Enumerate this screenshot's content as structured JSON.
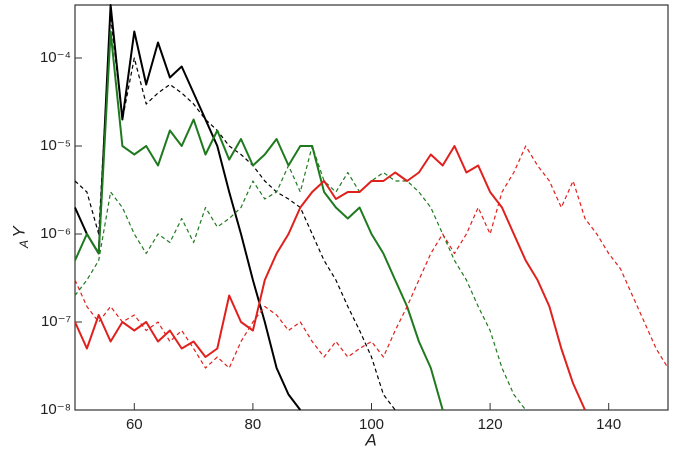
{
  "chart_data": {
    "type": "line",
    "xlabel": "A",
    "ylabel": "Y",
    "ylabel_sub": "A",
    "x": [
      50,
      52,
      54,
      56,
      58,
      60,
      62,
      64,
      66,
      68,
      70,
      72,
      74,
      76,
      78,
      80,
      82,
      84,
      86,
      88,
      90,
      92,
      94,
      96,
      98,
      100,
      102,
      104,
      106,
      108,
      110,
      112,
      114,
      116,
      118,
      120,
      122,
      124,
      126,
      128,
      130,
      132,
      134,
      136,
      138,
      140,
      142,
      144,
      146,
      148,
      150
    ],
    "xlim": [
      50,
      150
    ],
    "xticks": [
      60,
      80,
      100,
      120,
      140
    ],
    "ylim": [
      1e-08,
      0.0004
    ],
    "log_y": true,
    "grid": false,
    "yticks": [
      {
        "value": 1e-08,
        "label": "10⁻⁸"
      },
      {
        "value": 1e-07,
        "label": "10⁻⁷"
      },
      {
        "value": 1e-06,
        "label": "10⁻⁶"
      },
      {
        "value": 1e-05,
        "label": "10⁻⁵"
      },
      {
        "value": 0.0001,
        "label": "10⁻⁴"
      }
    ],
    "series": [
      {
        "color": "#000000",
        "dashed": false,
        "values": [
          2e-06,
          1e-06,
          6e-07,
          0.0004,
          2e-05,
          0.0002,
          5e-05,
          0.00015,
          6e-05,
          8e-05,
          4e-05,
          2e-05,
          1e-05,
          3e-06,
          1e-06,
          3e-07,
          1e-07,
          3e-08,
          1.5e-08,
          1e-08,
          null,
          null,
          null,
          null,
          null,
          null,
          null,
          null,
          null,
          null,
          null,
          null,
          null,
          null,
          null,
          null,
          null,
          null,
          null,
          null,
          null,
          null,
          null,
          null,
          null,
          null,
          null,
          null,
          null,
          null,
          null
        ]
      },
      {
        "color": "#000000",
        "dashed": true,
        "values": [
          4e-06,
          3e-06,
          1e-06,
          0.0003,
          2e-05,
          0.0001,
          3e-05,
          4e-05,
          5e-05,
          4e-05,
          3e-05,
          2e-05,
          1.5e-05,
          1e-05,
          8e-06,
          6e-06,
          4e-06,
          3e-06,
          2.5e-06,
          2e-06,
          1e-06,
          5e-07,
          3e-07,
          1.5e-07,
          8e-08,
          4e-08,
          1.5e-08,
          1e-08,
          null,
          null,
          null,
          null,
          null,
          null,
          null,
          null,
          null,
          null,
          null,
          null,
          null,
          null,
          null,
          null,
          null,
          null,
          null,
          null,
          null,
          null,
          null
        ]
      },
      {
        "color": "#1f7a1f",
        "dashed": false,
        "values": [
          5e-07,
          1e-06,
          6e-07,
          0.0002,
          1e-05,
          8e-06,
          1e-05,
          6e-06,
          1.5e-05,
          1e-05,
          2e-05,
          8e-06,
          1.5e-05,
          7e-06,
          1.2e-05,
          6e-06,
          8e-06,
          1.2e-05,
          6e-06,
          1e-05,
          1e-05,
          3e-06,
          2e-06,
          1.5e-06,
          2e-06,
          1e-06,
          6e-07,
          3e-07,
          1.5e-07,
          6e-08,
          3e-08,
          1e-08,
          null,
          null,
          null,
          null,
          null,
          null,
          null,
          null,
          null,
          null,
          null,
          null,
          null,
          null,
          null,
          null,
          null,
          null,
          null
        ]
      },
      {
        "color": "#1f7a1f",
        "dashed": true,
        "values": [
          2e-07,
          3e-07,
          5e-07,
          3e-06,
          2e-06,
          1e-06,
          6e-07,
          1e-06,
          8e-07,
          1.5e-06,
          8e-07,
          2e-06,
          1.2e-06,
          1.5e-06,
          2e-06,
          4e-06,
          2.5e-06,
          3e-06,
          6e-06,
          3e-06,
          1e-05,
          4e-06,
          3e-06,
          5e-06,
          3e-06,
          4e-06,
          5e-06,
          4e-06,
          4e-06,
          3e-06,
          2e-06,
          1e-06,
          5e-07,
          3e-07,
          1.5e-07,
          8e-08,
          3e-08,
          1.5e-08,
          1e-08,
          null,
          null,
          null,
          null,
          null,
          null,
          null,
          null,
          null,
          null,
          null,
          null
        ]
      },
      {
        "color": "#e0201c",
        "dashed": false,
        "values": [
          1e-07,
          5e-08,
          1.2e-07,
          6e-08,
          1e-07,
          8e-08,
          1e-07,
          6e-08,
          8e-08,
          5e-08,
          6e-08,
          4e-08,
          5e-08,
          2e-07,
          1e-07,
          8e-08,
          3e-07,
          6e-07,
          1e-06,
          2e-06,
          3e-06,
          4e-06,
          2.5e-06,
          3e-06,
          3e-06,
          4e-06,
          4e-06,
          5e-06,
          4e-06,
          5e-06,
          8e-06,
          6e-06,
          1e-05,
          5e-06,
          6e-06,
          3e-06,
          2e-06,
          1e-06,
          5e-07,
          3e-07,
          1.5e-07,
          5e-08,
          2e-08,
          1e-08,
          null,
          null,
          null,
          null,
          null,
          null,
          null
        ]
      },
      {
        "color": "#e0201c",
        "dashed": true,
        "values": [
          3e-07,
          1.5e-07,
          1e-07,
          1.5e-07,
          1e-07,
          1.2e-07,
          8e-08,
          1e-07,
          6e-08,
          8e-08,
          5e-08,
          3e-08,
          4e-08,
          3e-08,
          6e-08,
          1e-07,
          1.5e-07,
          1.2e-07,
          8e-08,
          1e-07,
          6e-08,
          4e-08,
          6e-08,
          4e-08,
          5e-08,
          6e-08,
          4e-08,
          8e-08,
          1.5e-07,
          3e-07,
          6e-07,
          1e-06,
          6e-07,
          1e-06,
          2e-06,
          1e-06,
          3e-06,
          5e-06,
          1e-05,
          6e-06,
          4e-06,
          2e-06,
          4e-06,
          1.5e-06,
          1e-06,
          6e-07,
          4e-07,
          2e-07,
          1e-07,
          5e-08,
          3e-08
        ]
      }
    ]
  }
}
